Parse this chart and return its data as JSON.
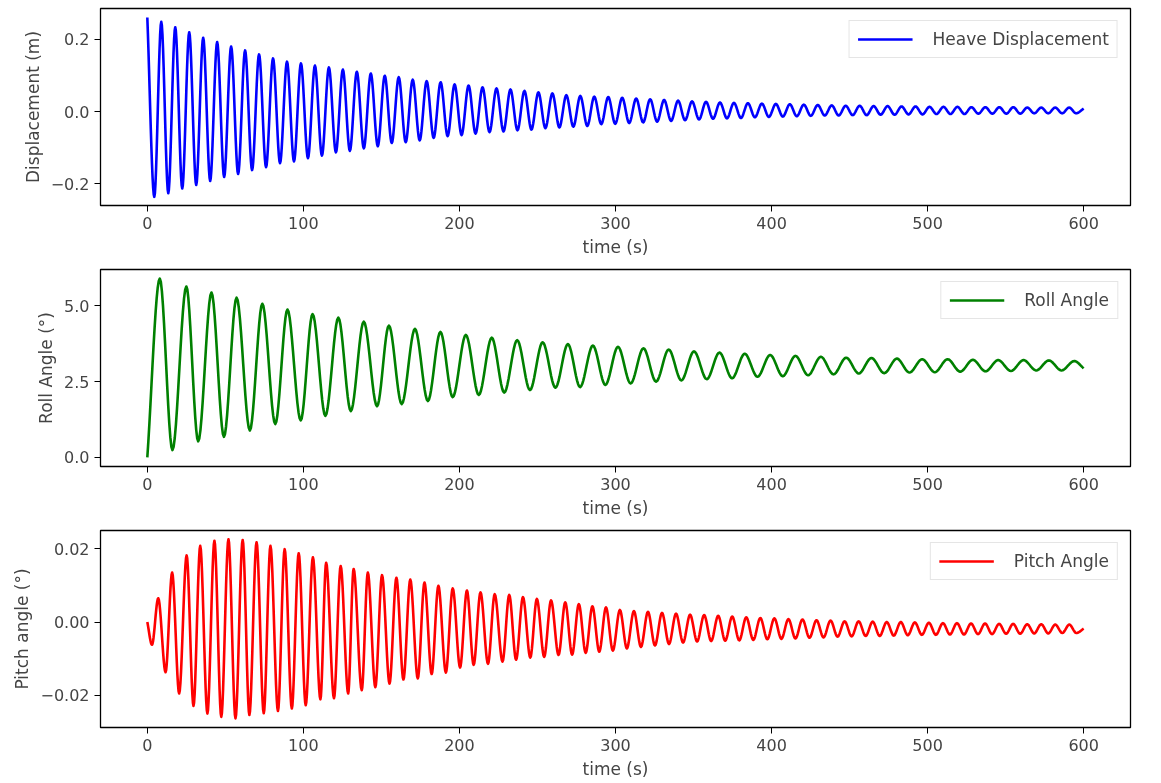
{
  "chart_data": [
    {
      "type": "line",
      "xlabel": "time (s)",
      "ylabel": "Displacement (m)",
      "xlim": [
        -30,
        630
      ],
      "ylim": [
        -0.26,
        0.285
      ],
      "xticks": [
        0,
        100,
        200,
        300,
        400,
        500,
        600
      ],
      "yticks": [
        {
          "value": -0.2,
          "label": "−0.2"
        },
        {
          "value": 0,
          "label": "0.0"
        },
        {
          "value": 0.2,
          "label": "0.2"
        }
      ],
      "grid": false,
      "legend": "top right",
      "line_style": "solid",
      "marker": "none",
      "x": [
        0,
        4.48,
        8.95,
        13.43,
        17.9,
        22.38,
        26.85,
        31.33,
        35.8,
        40.28,
        44.75,
        49.23,
        53.7,
        58.18,
        62.65,
        67.13,
        71.6,
        76.08,
        80.55,
        85.03,
        89.5,
        93.98,
        98.45,
        102.93,
        107.4,
        111.88,
        116.35,
        120.83,
        125.3,
        129.78,
        134.25,
        138.73,
        143.2,
        147.68,
        152.15,
        156.63,
        161.1,
        165.58,
        170.05,
        174.53,
        179,
        183.48,
        187.95,
        192.43,
        196.9,
        201.38,
        205.85,
        210.33,
        214.8,
        219.28,
        223.75,
        228.23,
        232.7,
        237.18,
        241.65,
        246.13,
        250.6,
        255.08,
        259.55,
        264.03,
        268.5,
        272.98,
        277.45,
        281.93,
        286.4,
        290.88,
        295.35,
        299.83,
        304.3,
        308.78,
        313.25,
        317.73,
        322.2,
        326.68,
        331.15,
        335.63,
        340.1,
        344.58,
        349.05,
        353.53,
        358,
        362.48,
        366.95,
        371.43,
        375.9,
        380.38,
        384.85,
        389.33,
        393.8,
        398.28,
        402.75,
        407.23,
        411.7,
        416.18,
        420.65,
        425.13,
        429.6,
        434.08,
        438.55,
        443.03,
        447.5,
        451.98,
        456.45,
        460.93,
        465.4,
        469.88,
        474.35,
        478.83,
        483.3,
        487.78,
        492.25,
        496.73,
        501.2,
        505.68,
        510.15,
        514.63,
        519.1,
        523.58,
        528.05,
        532.53,
        537,
        541.48,
        545.95,
        550.43,
        554.9,
        559.38,
        563.85,
        568.33,
        572.8,
        577.28,
        581.75,
        586.23,
        590.7,
        595.18,
        600
      ],
      "series": [
        {
          "name": "Heave Displacement",
          "color": "#0000ff",
          "values": [
            0.26,
            -0.236,
            0.248,
            -0.226,
            0.233,
            -0.213,
            0.219,
            -0.203,
            0.204,
            -0.192,
            0.192,
            -0.181,
            0.18,
            -0.173,
            0.169,
            -0.162,
            0.158,
            -0.154,
            0.147,
            -0.143,
            0.138,
            -0.138,
            0.133,
            -0.129,
            0.127,
            -0.122,
            0.122,
            -0.113,
            0.116,
            -0.109,
            0.11,
            -0.102,
            0.105,
            -0.096,
            0.099,
            -0.087,
            0.095,
            -0.085,
            0.088,
            -0.08,
            0.084,
            -0.073,
            0.081,
            -0.068,
            0.075,
            -0.065,
            0.072,
            -0.061,
            0.067,
            -0.057,
            0.064,
            -0.055,
            0.061,
            -0.052,
            0.057,
            -0.05,
            0.053,
            -0.046,
            0.05,
            -0.044,
            0.045,
            -0.042,
            0.043,
            -0.04,
            0.041,
            -0.035,
            0.04,
            -0.034,
            0.038,
            -0.032,
            0.036,
            -0.03,
            0.034,
            -0.028,
            0.032,
            -0.026,
            0.03,
            -0.024,
            0.028,
            -0.022,
            0.027,
            -0.02,
            0.025,
            -0.019,
            0.024,
            -0.018,
            0.023,
            -0.016,
            0.022,
            -0.015,
            0.021,
            -0.014,
            0.02,
            -0.013,
            0.019,
            -0.012,
            0.018,
            -0.011,
            0.017,
            -0.011,
            0.016,
            -0.01,
            0.016,
            -0.01,
            0.015,
            -0.009,
            0.015,
            -0.009,
            0.014,
            -0.008,
            0.014,
            -0.008,
            0.013,
            -0.007,
            0.013,
            -0.007,
            0.013,
            -0.007,
            0.012,
            -0.006,
            0.012,
            -0.006,
            0.012,
            -0.006,
            0.012,
            -0.006,
            0.011,
            -0.005,
            0.011,
            -0.005,
            0.011,
            -0.005,
            0.011,
            -0.005,
            0.008
          ]
        }
      ]
    },
    {
      "type": "line",
      "xlabel": "time (s)",
      "ylabel": "Roll Angle (°)",
      "xlim": [
        -30,
        630
      ],
      "ylim": [
        -0.3,
        6.2
      ],
      "xticks": [
        0,
        100,
        200,
        300,
        400,
        500,
        600
      ],
      "yticks": [
        {
          "value": 0,
          "label": "0.0"
        },
        {
          "value": 2.5,
          "label": "2.5"
        },
        {
          "value": 5,
          "label": "5.0"
        }
      ],
      "grid": false,
      "legend": "top right",
      "line_style": "solid",
      "marker": "none",
      "x": [
        0,
        8,
        16.1,
        25,
        32.6,
        41.1,
        49.1,
        57.2,
        65.7,
        73.7,
        82,
        89.8,
        98.3,
        105.9,
        114.1,
        122.4,
        130.4,
        138.7,
        147.2,
        154.8,
        163,
        171.5,
        179.8,
        187.8,
        195.7,
        204.1,
        212.4,
        220.7,
        228.7,
        237,
        245.2,
        253.3,
        261.5,
        269.5,
        277.3,
        285.5,
        293.5,
        301.6,
        309.7,
        317.9,
        326,
        334.1,
        342.2,
        350.3,
        358.5,
        366.6,
        374.7,
        382.8,
        391,
        399.1,
        407.2,
        415.3,
        423.4,
        431.6,
        439.7,
        447.8,
        455.9,
        464,
        472.2,
        480.3,
        488.4,
        496.5,
        504.6,
        512.8,
        520.9,
        529,
        537.1,
        545.2,
        553.4,
        561.5,
        569.6,
        577.7,
        585.8,
        594,
        600
      ],
      "series": [
        {
          "name": "Roll Angle",
          "color": "#008000",
          "values": [
            0,
            5.9,
            0.24,
            5.64,
            0.53,
            5.44,
            0.68,
            5.27,
            0.89,
            5.07,
            1.1,
            4.88,
            1.22,
            4.73,
            1.37,
            4.61,
            1.53,
            4.48,
            1.69,
            4.35,
            1.76,
            4.24,
            1.86,
            4.14,
            1.99,
            4.04,
            2.06,
            3.95,
            2.14,
            3.87,
            2.22,
            3.8,
            2.3,
            3.74,
            2.32,
            3.69,
            2.39,
            3.65,
            2.44,
            3.6,
            2.5,
            3.56,
            2.54,
            3.5,
            2.58,
            3.46,
            2.61,
            3.42,
            2.66,
            3.38,
            2.68,
            3.35,
            2.71,
            3.32,
            2.74,
            3.29,
            2.77,
            3.28,
            2.78,
            3.26,
            2.8,
            3.24,
            2.81,
            3.24,
            2.83,
            3.22,
            2.84,
            3.21,
            2.85,
            3.21,
            2.87,
            3.2,
            2.87,
            3.18,
            2.94
          ]
        }
      ]
    },
    {
      "type": "line",
      "xlabel": "time (s)",
      "ylabel": "Pitch angle (°)",
      "xlim": [
        -30,
        630
      ],
      "ylim": [
        -0.0288,
        0.025
      ],
      "xticks": [
        0,
        100,
        200,
        300,
        400,
        500,
        600
      ],
      "yticks": [
        {
          "value": -0.02,
          "label": "−0.02"
        },
        {
          "value": 0,
          "label": "0.00"
        },
        {
          "value": 0.02,
          "label": "0.02"
        }
      ],
      "grid": false,
      "legend": "top right",
      "line_style": "solid",
      "marker": "none",
      "x": [
        0,
        3,
        7,
        11.7,
        15.9,
        20.4,
        25.2,
        29.6,
        33.9,
        38.5,
        43,
        47.4,
        52,
        56.5,
        61.1,
        65.4,
        70,
        74.6,
        78.9,
        83.7,
        88,
        92.6,
        97,
        101.5,
        106.1,
        110.9,
        114.6,
        119.6,
        123.9,
        128.7,
        132.2,
        137.4,
        141.3,
        146.1,
        150.4,
        155.2,
        159.6,
        164.1,
        168.5,
        173.3,
        177.6,
        182.2,
        186.5,
        191.3,
        195.7,
        200.4,
        204.8,
        209.1,
        213.5,
        218.3,
        222.6,
        227.6,
        231.9,
        236.3,
        240.7,
        245.4,
        249.6,
        254.3,
        258.7,
        263.5,
        267.8,
        272.2,
        276.5,
        280.9,
        285.2,
        289.6,
        293.9,
        298.3,
        302.8,
        307.3,
        311.8,
        316.3,
        320.8,
        325.3,
        329.8,
        334.3,
        338.8,
        343.3,
        347.8,
        352.3,
        356.8,
        361.3,
        365.8,
        370.3,
        374.8,
        379.3,
        383.8,
        388.3,
        392.8,
        397.3,
        401.8,
        406.3,
        410.8,
        415.3,
        419.8,
        424.3,
        428.8,
        433.3,
        437.8,
        442.3,
        446.8,
        451.3,
        455.8,
        460.3,
        464.8,
        469.3,
        473.8,
        478.3,
        482.8,
        487.3,
        491.8,
        496.3,
        500.8,
        505.3,
        509.8,
        514.3,
        518.8,
        523.3,
        527.8,
        532.3,
        536.8,
        541.3,
        545.8,
        550.3,
        554.8,
        559.3,
        563.8,
        568.3,
        572.8,
        577.3,
        581.8,
        586.3,
        590.8,
        595.3,
        600
      ],
      "series": [
        {
          "name": "Pitch Angle",
          "color": "#ff0000",
          "values": [
            0,
            -0.0062,
            0.0065,
            -0.0137,
            0.0135,
            -0.0195,
            0.0182,
            -0.0229,
            0.0208,
            -0.025,
            0.0222,
            -0.0259,
            0.0226,
            -0.0263,
            0.0224,
            -0.0254,
            0.0218,
            -0.0249,
            0.0208,
            -0.0243,
            0.0199,
            -0.0236,
            0.0188,
            -0.0227,
            0.0177,
            -0.0211,
            0.0162,
            -0.0208,
            0.0153,
            -0.0195,
            0.0145,
            -0.0186,
            0.0135,
            -0.0178,
            0.0128,
            -0.0168,
            0.0121,
            -0.0157,
            0.0116,
            -0.0154,
            0.0108,
            -0.0142,
            0.0099,
            -0.0138,
            0.0092,
            -0.0124,
            0.0086,
            -0.0117,
            0.0081,
            -0.0114,
            0.0076,
            -0.0108,
            0.0074,
            -0.0103,
            0.0068,
            -0.0097,
            0.0063,
            -0.0095,
            0.0059,
            -0.009,
            0.0054,
            -0.0089,
            0.0049,
            -0.0084,
            0.0043,
            -0.0081,
            0.004,
            -0.0078,
            0.0033,
            -0.0072,
            0.003,
            -0.0068,
            0.0028,
            -0.0064,
            0.0025,
            -0.006,
            0.0023,
            -0.0056,
            0.002,
            -0.0053,
            0.0019,
            -0.0052,
            0.0017,
            -0.0051,
            0.0015,
            -0.005,
            0.0013,
            -0.0049,
            0.0011,
            -0.0047,
            0.001,
            -0.0046,
            0.0008,
            -0.0045,
            0.0007,
            -0.0043,
            0.0005,
            -0.0042,
            0.0004,
            -0.004,
            0.0002,
            -0.0039,
            0.0002,
            -0.0038,
            0.0001,
            -0.0038,
            0,
            -0.0037,
            0,
            -0.0036,
            -0.0001,
            -0.0035,
            -0.0002,
            -0.0035,
            -0.0003,
            -0.0034,
            -0.0003,
            -0.0034,
            -0.0004,
            -0.0033,
            -0.0004,
            -0.0033,
            -0.0005,
            -0.0032,
            -0.0005,
            -0.0032,
            -0.0006,
            -0.0031,
            -0.0006,
            -0.0031,
            -0.0007,
            -0.003,
            -0.0007,
            -0.003,
            -0.0018
          ]
        }
      ]
    }
  ]
}
